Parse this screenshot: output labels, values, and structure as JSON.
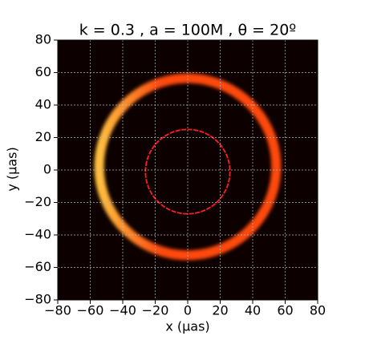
{
  "chart_data": {
    "type": "image",
    "title": "k = 0.3 , a = 100M ,  θ = 20º",
    "xlabel": "x (μas)",
    "ylabel": "y (μas)",
    "xlim": [
      -80,
      80
    ],
    "ylim": [
      -80,
      80
    ],
    "xticks": [
      {
        "value": -80,
        "label": "−80"
      },
      {
        "value": -60,
        "label": "−60"
      },
      {
        "value": -40,
        "label": "−40"
      },
      {
        "value": -20,
        "label": "−20"
      },
      0,
      20,
      40,
      60,
      80
    ],
    "yticks": [
      {
        "value": -80,
        "label": "−80"
      },
      {
        "value": -60,
        "label": "−60"
      },
      {
        "value": -40,
        "label": "−40"
      },
      {
        "value": -20,
        "label": "−20"
      },
      0,
      20,
      40,
      60,
      80
    ],
    "grid": true,
    "background": "#0d0000",
    "rings": [
      {
        "cx": 0,
        "cy": 2,
        "r": 54.5,
        "width": 6,
        "color": "#ff4a10",
        "highlight": "#ffc040"
      },
      {
        "cx": 0,
        "cy": -1,
        "r": 26,
        "width": 0.6,
        "color": "#ff2020"
      }
    ]
  }
}
